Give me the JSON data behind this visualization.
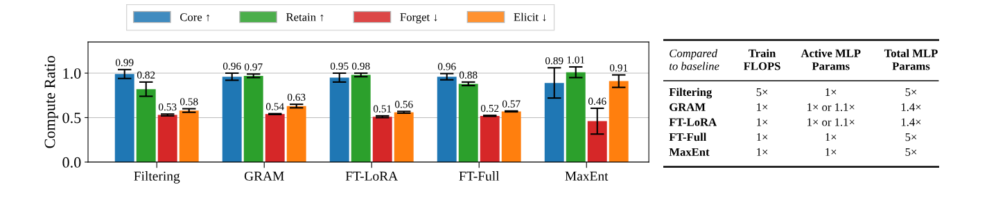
{
  "chart_data": [
    {
      "type": "bar",
      "ylabel": "Compute Ratio",
      "categories": [
        "Filtering",
        "GRAM",
        "FT-LoRA",
        "FT-Full",
        "MaxEnt"
      ],
      "series": [
        {
          "name": "Core ↑",
          "color": "#1f77b4",
          "values": [
            0.99,
            0.96,
            0.95,
            0.96,
            0.89
          ],
          "errors": [
            0.05,
            0.04,
            0.05,
            0.035,
            0.17
          ]
        },
        {
          "name": "Retain ↑",
          "color": "#2ca02c",
          "values": [
            0.82,
            0.97,
            0.98,
            0.88,
            1.01
          ],
          "errors": [
            0.08,
            0.02,
            0.02,
            0.02,
            0.06
          ]
        },
        {
          "name": "Forget ↓",
          "color": "#d62728",
          "values": [
            0.53,
            0.54,
            0.51,
            0.52,
            0.46
          ],
          "errors": [
            0.01,
            0.005,
            0.01,
            0.005,
            0.145
          ]
        },
        {
          "name": "Elicit ↓",
          "color": "#ff7f0e",
          "values": [
            0.58,
            0.63,
            0.56,
            0.57,
            0.91
          ],
          "errors": [
            0.02,
            0.02,
            0.01,
            0.005,
            0.07
          ]
        }
      ],
      "ylim": [
        0,
        1.35
      ],
      "yticks": [
        {
          "value": 0,
          "label": "0.0"
        },
        {
          "value": 0.5,
          "label": "0.5"
        },
        {
          "value": 1,
          "label": "1.0"
        }
      ],
      "grid": "y",
      "legend": "top",
      "data_labels": true
    },
    {
      "type": "other",
      "annotations": [
        "Compared\nto baseline",
        "Train\nFLOPS",
        "Active MLP\nParams",
        "Total MLP\nParams",
        "Filtering",
        "5×",
        "1×",
        "5×",
        "GRAM",
        "1×",
        "1× or 1.1×",
        "1.4×",
        "FT-LoRA",
        "1×",
        "1× or 1.1×",
        "1.4×",
        "FT-Full",
        "1×",
        "1×",
        "5×",
        "MaxEnt",
        "1×",
        "1×",
        "5×"
      ]
    }
  ]
}
